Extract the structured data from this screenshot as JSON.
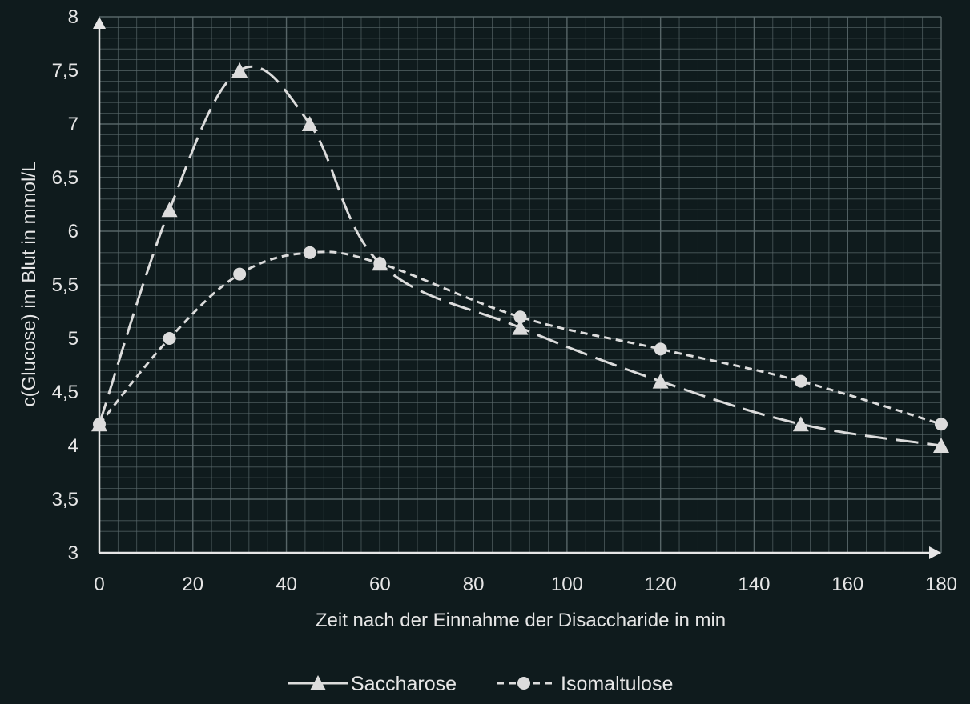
{
  "chart_data": {
    "type": "line",
    "xlabel": "Zeit nach der Einnahme der Disaccharide in min",
    "ylabel": "c(Glucose) im Blut in mmol/L",
    "xlim": [
      0,
      180
    ],
    "ylim": [
      3,
      8
    ],
    "x_ticks": [
      0,
      20,
      40,
      60,
      80,
      100,
      120,
      140,
      160,
      180
    ],
    "x_tick_labels": [
      "0",
      "20",
      "40",
      "60",
      "80",
      "100",
      "120",
      "140",
      "160",
      "180"
    ],
    "y_ticks": [
      3,
      3.5,
      4,
      4.5,
      5,
      5.5,
      6,
      6.5,
      7,
      7.5,
      8
    ],
    "y_tick_labels": [
      "3",
      "3,5",
      "4",
      "4,5",
      "5",
      "5,5",
      "6",
      "6,5",
      "7",
      "7,5",
      "8"
    ],
    "grid": true,
    "legend_position": "bottom-center",
    "series": [
      {
        "name": "Saccharose",
        "marker": "triangle",
        "line_style": "long-dash",
        "x": [
          0,
          15,
          30,
          45,
          60,
          90,
          120,
          150,
          180
        ],
        "y": [
          4.2,
          6.2,
          7.5,
          7.0,
          5.7,
          5.1,
          4.6,
          4.2,
          4.0
        ]
      },
      {
        "name": "Isomaltulose",
        "marker": "circle",
        "line_style": "short-dash",
        "x": [
          0,
          15,
          30,
          45,
          60,
          90,
          120,
          150,
          180
        ],
        "y": [
          4.2,
          5.0,
          5.6,
          5.8,
          5.7,
          5.2,
          4.9,
          4.6,
          4.2
        ]
      }
    ]
  },
  "colors": {
    "background": "#0f1b1d",
    "grid": "#5b6a6c",
    "axis": "#e6e6e6",
    "series": "#dcdcdc"
  }
}
